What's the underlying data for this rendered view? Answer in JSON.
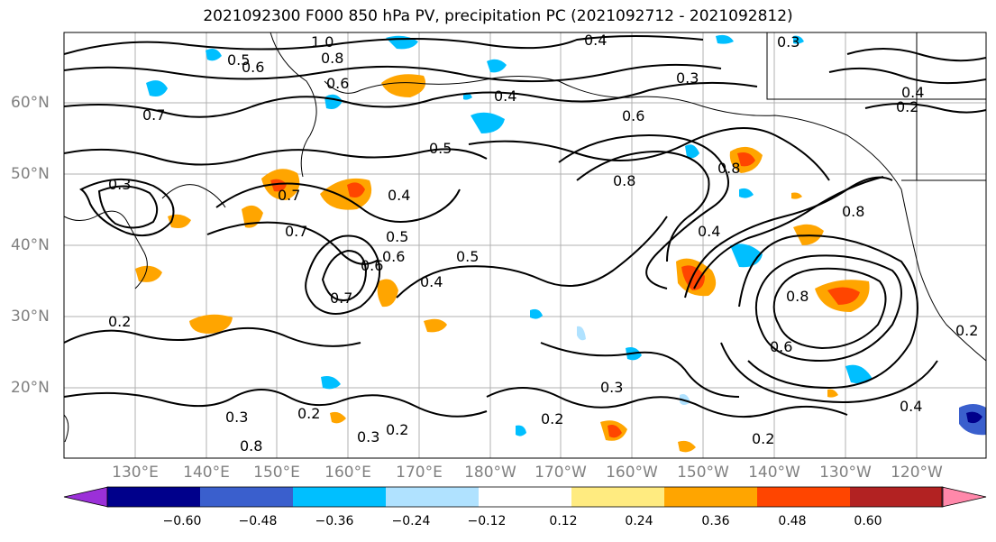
{
  "title": "2021092300 F000 850 hPa PV, precipitation PC (2021092712 - 2021092812)",
  "lat_labels": [
    "60°N",
    "50°N",
    "40°N",
    "30°N",
    "20°N"
  ],
  "lon_labels": [
    "130°E",
    "140°E",
    "150°E",
    "160°E",
    "170°E",
    "180°W",
    "170°W",
    "160°W",
    "150°W",
    "140°W",
    "130°W",
    "120°W"
  ],
  "colorbar": {
    "ticks": [
      "−0.60",
      "−0.48",
      "−0.36",
      "−0.24",
      "−0.12",
      "0.12",
      "0.24",
      "0.36",
      "0.48",
      "0.60"
    ],
    "colors": [
      "#9b30d8",
      "#00008b",
      "#3a5fcd",
      "#00bfff",
      "#b0e2ff",
      "#ffffff",
      "#ffeb80",
      "#ffa500",
      "#ff4500",
      "#b22222",
      "#ff88aa"
    ]
  },
  "contour_labels": [
    "1.0",
    "0.8",
    "0.5",
    "0.6",
    "0.4",
    "0.3",
    "0.7",
    "0.6",
    "0.4",
    "0.3",
    "0.6",
    "0.5",
    "0.8",
    "0.4",
    "0.2",
    "0.7",
    "0.3",
    "0.7",
    "0.4",
    "0.6",
    "0.5",
    "0.7",
    "0.6",
    "0.4",
    "0.5",
    "0.2",
    "0.8",
    "0.8",
    "0.4",
    "0.2",
    "0.8",
    "0.6",
    "0.3",
    "0.2",
    "0.3",
    "0.2",
    "0.3",
    "0.2",
    "0.2",
    "0.4",
    "0.8"
  ]
}
